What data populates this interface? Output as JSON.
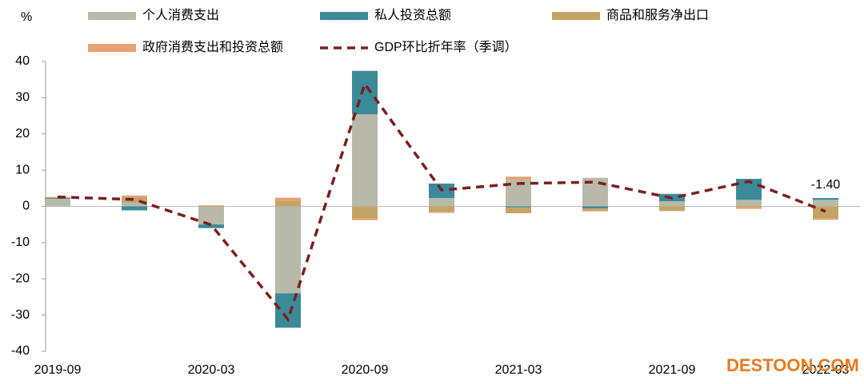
{
  "chart_data": {
    "type": "bar",
    "stacked": true,
    "y_label": "%",
    "categories": [
      "2019-09",
      null,
      "2020-03",
      null,
      "2020-09",
      null,
      "2021-03",
      null,
      "2021-09",
      null,
      "2022-03"
    ],
    "series": [
      {
        "name": "个人消费支出",
        "color": "#b9b9a9",
        "values": [
          2.1,
          1.1,
          -5.0,
          -24.0,
          25.4,
          2.3,
          7.4,
          7.9,
          1.4,
          1.8,
          1.8
        ]
      },
      {
        "name": "私人投资总额",
        "color": "#3a8a9a",
        "values": [
          0.2,
          -1.1,
          -1.0,
          -9.5,
          12.0,
          4.0,
          -0.3,
          -0.6,
          2.0,
          5.8,
          0.5
        ]
      },
      {
        "name": "商品和服务净出口",
        "color": "#c4a466",
        "values": [
          0.0,
          1.5,
          0.1,
          1.6,
          -3.2,
          -1.6,
          -1.6,
          -0.4,
          -1.3,
          -0.2,
          -3.2
        ]
      },
      {
        "name": "政府消费支出和投资总额",
        "color": "#e8a070",
        "values": [
          0.3,
          0.4,
          0.2,
          0.8,
          -0.6,
          -0.2,
          0.8,
          -0.4,
          0.1,
          -0.5,
          -0.5
        ]
      },
      {
        "name": "GDP环比折年率（季调）",
        "type": "line",
        "color": "#7b1f1f",
        "values": [
          2.6,
          1.9,
          -5.1,
          -31.2,
          33.8,
          4.5,
          6.3,
          6.7,
          2.3,
          6.9,
          -1.4
        ],
        "value_labels": [
          null,
          null,
          null,
          null,
          null,
          null,
          null,
          null,
          null,
          null,
          "-1.40"
        ]
      }
    ],
    "ylim": [
      -40,
      40
    ],
    "yticks": [
      -40,
      -30,
      -20,
      -10,
      0,
      10,
      20,
      30,
      40
    ],
    "watermark": "DESTOON.COM"
  }
}
